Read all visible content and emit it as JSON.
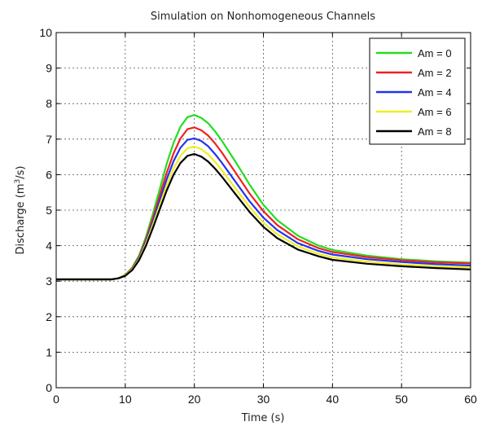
{
  "chart_data": {
    "type": "line",
    "title": "Simulation on Nonhomogeneous Channels",
    "xlabel": "Time (s)",
    "ylabel_main": "Discharge (m",
    "ylabel_sup": "3",
    "ylabel_tail": "/s)",
    "xlim": [
      0,
      60
    ],
    "ylim": [
      0,
      10
    ],
    "xticks": [
      "0",
      "10",
      "20",
      "30",
      "40",
      "50",
      "60"
    ],
    "yticks": [
      "0",
      "1",
      "2",
      "3",
      "4",
      "5",
      "6",
      "7",
      "8",
      "9",
      "10"
    ],
    "grid": true,
    "legend_position": "top-right",
    "x": [
      0,
      5,
      8,
      9,
      10,
      11,
      12,
      13,
      14,
      15,
      16,
      17,
      18,
      19,
      20,
      21,
      22,
      23,
      24,
      25,
      26,
      28,
      30,
      32,
      35,
      38,
      40,
      45,
      50,
      55,
      60
    ],
    "series": [
      {
        "name": "Am = 0",
        "color": "#22dd22",
        "values": [
          3.05,
          3.05,
          3.05,
          3.08,
          3.18,
          3.38,
          3.72,
          4.25,
          4.9,
          5.6,
          6.3,
          6.9,
          7.35,
          7.62,
          7.68,
          7.6,
          7.45,
          7.22,
          6.95,
          6.65,
          6.35,
          5.72,
          5.15,
          4.72,
          4.28,
          4.0,
          3.88,
          3.72,
          3.62,
          3.56,
          3.52
        ]
      },
      {
        "name": "Am = 2",
        "color": "#ee2222",
        "values": [
          3.05,
          3.05,
          3.05,
          3.08,
          3.17,
          3.36,
          3.68,
          4.18,
          4.78,
          5.42,
          6.05,
          6.6,
          7.02,
          7.28,
          7.33,
          7.25,
          7.1,
          6.88,
          6.62,
          6.33,
          6.05,
          5.47,
          4.97,
          4.58,
          4.18,
          3.93,
          3.82,
          3.68,
          3.59,
          3.53,
          3.5
        ]
      },
      {
        "name": "Am = 4",
        "color": "#2233ee",
        "values": [
          3.05,
          3.05,
          3.05,
          3.08,
          3.16,
          3.34,
          3.65,
          4.12,
          4.68,
          5.28,
          5.87,
          6.38,
          6.76,
          6.98,
          7.02,
          6.95,
          6.8,
          6.58,
          6.33,
          6.06,
          5.79,
          5.25,
          4.79,
          4.44,
          4.07,
          3.85,
          3.75,
          3.62,
          3.54,
          3.48,
          3.44
        ]
      },
      {
        "name": "Am = 6",
        "color": "#eeee22",
        "values": [
          3.05,
          3.05,
          3.05,
          3.08,
          3.16,
          3.33,
          3.62,
          4.06,
          4.59,
          5.15,
          5.7,
          6.18,
          6.53,
          6.74,
          6.79,
          6.72,
          6.57,
          6.36,
          6.12,
          5.86,
          5.6,
          5.09,
          4.65,
          4.32,
          3.98,
          3.77,
          3.67,
          3.55,
          3.47,
          3.42,
          3.38
        ]
      },
      {
        "name": "Am = 8",
        "color": "#000000",
        "values": [
          3.05,
          3.05,
          3.05,
          3.08,
          3.15,
          3.31,
          3.59,
          4.0,
          4.5,
          5.03,
          5.55,
          6.0,
          6.33,
          6.53,
          6.58,
          6.51,
          6.37,
          6.17,
          5.94,
          5.69,
          5.44,
          4.95,
          4.53,
          4.21,
          3.89,
          3.7,
          3.6,
          3.49,
          3.42,
          3.37,
          3.33
        ]
      }
    ]
  }
}
